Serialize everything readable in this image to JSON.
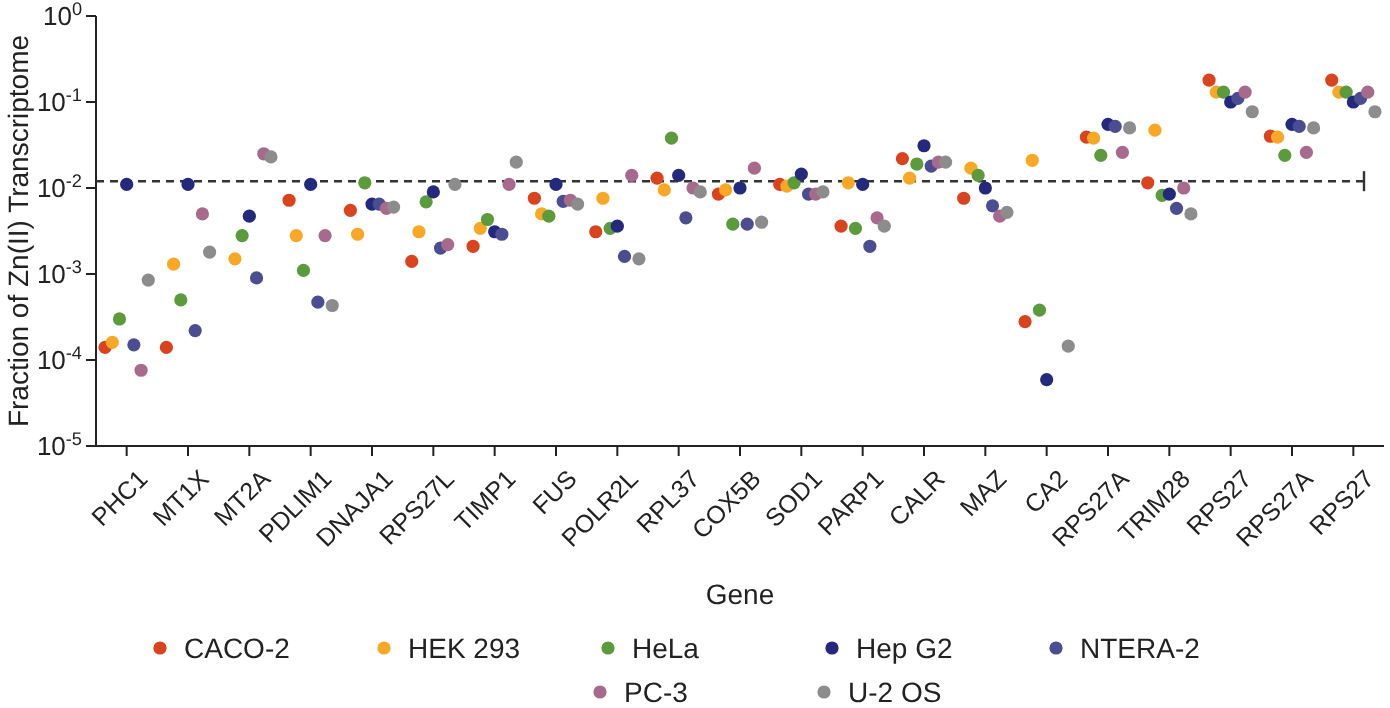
{
  "chart_data": {
    "type": "scatter",
    "xlabel": "Gene",
    "ylabel": "Fraction of Zn(II) Transcriptome",
    "categories": [
      "PHC1",
      "MT1X",
      "MT2A",
      "PDLIM1",
      "DNAJA1",
      "RPS27L",
      "TIMP1",
      "FUS",
      "POLR2L",
      "RPL37",
      "COX5B",
      "SOD1",
      "PARP1",
      "CALR",
      "MAZ",
      "CA2",
      "RPS27A",
      "TRIM28",
      "RPS27",
      "RPS27A",
      "RPS27"
    ],
    "log": "y",
    "ylim": [
      1e-05,
      1
    ],
    "yticks": [
      {
        "value": 1e-05,
        "label": "10$^{-5}$"
      },
      {
        "value": 0.0001,
        "label": "10$^{-4}$"
      },
      {
        "value": 0.001,
        "label": "10$^{-3}$"
      },
      {
        "value": 0.01,
        "label": "10$^{-2}$"
      },
      {
        "value": 0.1,
        "label": "10$^{-1}$"
      },
      {
        "value": 1,
        "label": "10$^{0}$"
      }
    ],
    "grid": false,
    "legend": "bottom",
    "marker": "circle",
    "ref_lines": [
      {
        "axis": "y",
        "value": 0.012,
        "line_style": "dashed",
        "color": "#333333"
      }
    ],
    "series": [
      {
        "name": "CACO-2",
        "color": "#d9431e",
        "values": [
          0.00014,
          0.00014,
          null,
          0.0072,
          0.0055,
          0.0014,
          0.0021,
          0.0076,
          0.0031,
          0.013,
          0.0085,
          0.011,
          0.0036,
          0.022,
          0.0076,
          0.00028,
          0.039,
          0.0115,
          0.18,
          0.04,
          0.18
        ]
      },
      {
        "name": "HEK 293",
        "color": "#f9a825",
        "values": [
          0.00016,
          0.0013,
          0.0015,
          0.0028,
          0.0029,
          0.0031,
          0.0034,
          0.005,
          0.0076,
          0.0095,
          0.0095,
          0.0105,
          0.0115,
          0.013,
          0.017,
          0.021,
          0.038,
          0.047,
          0.13,
          0.039,
          0.13
        ]
      },
      {
        "name": "HeLa",
        "color": "#5b9b3c",
        "values": [
          0.0003,
          0.0005,
          0.0028,
          0.0011,
          0.0115,
          0.0069,
          0.0043,
          0.0047,
          0.0034,
          0.038,
          0.0038,
          0.0115,
          0.0034,
          0.019,
          0.014,
          0.00038,
          0.024,
          0.0082,
          0.13,
          0.024,
          0.13
        ]
      },
      {
        "name": "Hep G2",
        "color": "#232a7e",
        "values": [
          0.011,
          0.011,
          0.0047,
          0.011,
          0.0065,
          0.009,
          0.0031,
          0.011,
          0.0036,
          0.014,
          0.01,
          0.0145,
          0.011,
          0.031,
          0.01,
          5.9e-05,
          0.055,
          0.0085,
          0.1,
          0.055,
          0.1
        ]
      },
      {
        "name": "NTERA-2",
        "color": "#4b4d91",
        "values": [
          0.00015,
          0.00022,
          0.0009,
          0.00047,
          0.0065,
          0.002,
          0.0029,
          0.007,
          0.0016,
          0.0045,
          0.0038,
          0.0085,
          0.0021,
          0.018,
          0.0062,
          null,
          0.052,
          0.0058,
          0.11,
          0.052,
          0.11
        ]
      },
      {
        "name": "PC-3",
        "color": "#a86a8c",
        "values": [
          7.6e-05,
          0.005,
          0.025,
          0.0028,
          0.0058,
          0.0022,
          0.011,
          0.0072,
          0.014,
          0.01,
          0.017,
          0.0085,
          0.0045,
          0.02,
          0.0047,
          null,
          0.026,
          0.01,
          0.13,
          0.026,
          0.13
        ]
      },
      {
        "name": "U-2 OS",
        "color": "#8c8c8c",
        "values": [
          0.00085,
          0.0018,
          0.023,
          0.00043,
          0.006,
          0.011,
          0.02,
          0.0065,
          0.0015,
          0.009,
          0.004,
          0.009,
          0.0036,
          0.02,
          0.0052,
          0.000145,
          0.05,
          0.005,
          0.077,
          0.05,
          0.077
        ]
      }
    ]
  }
}
